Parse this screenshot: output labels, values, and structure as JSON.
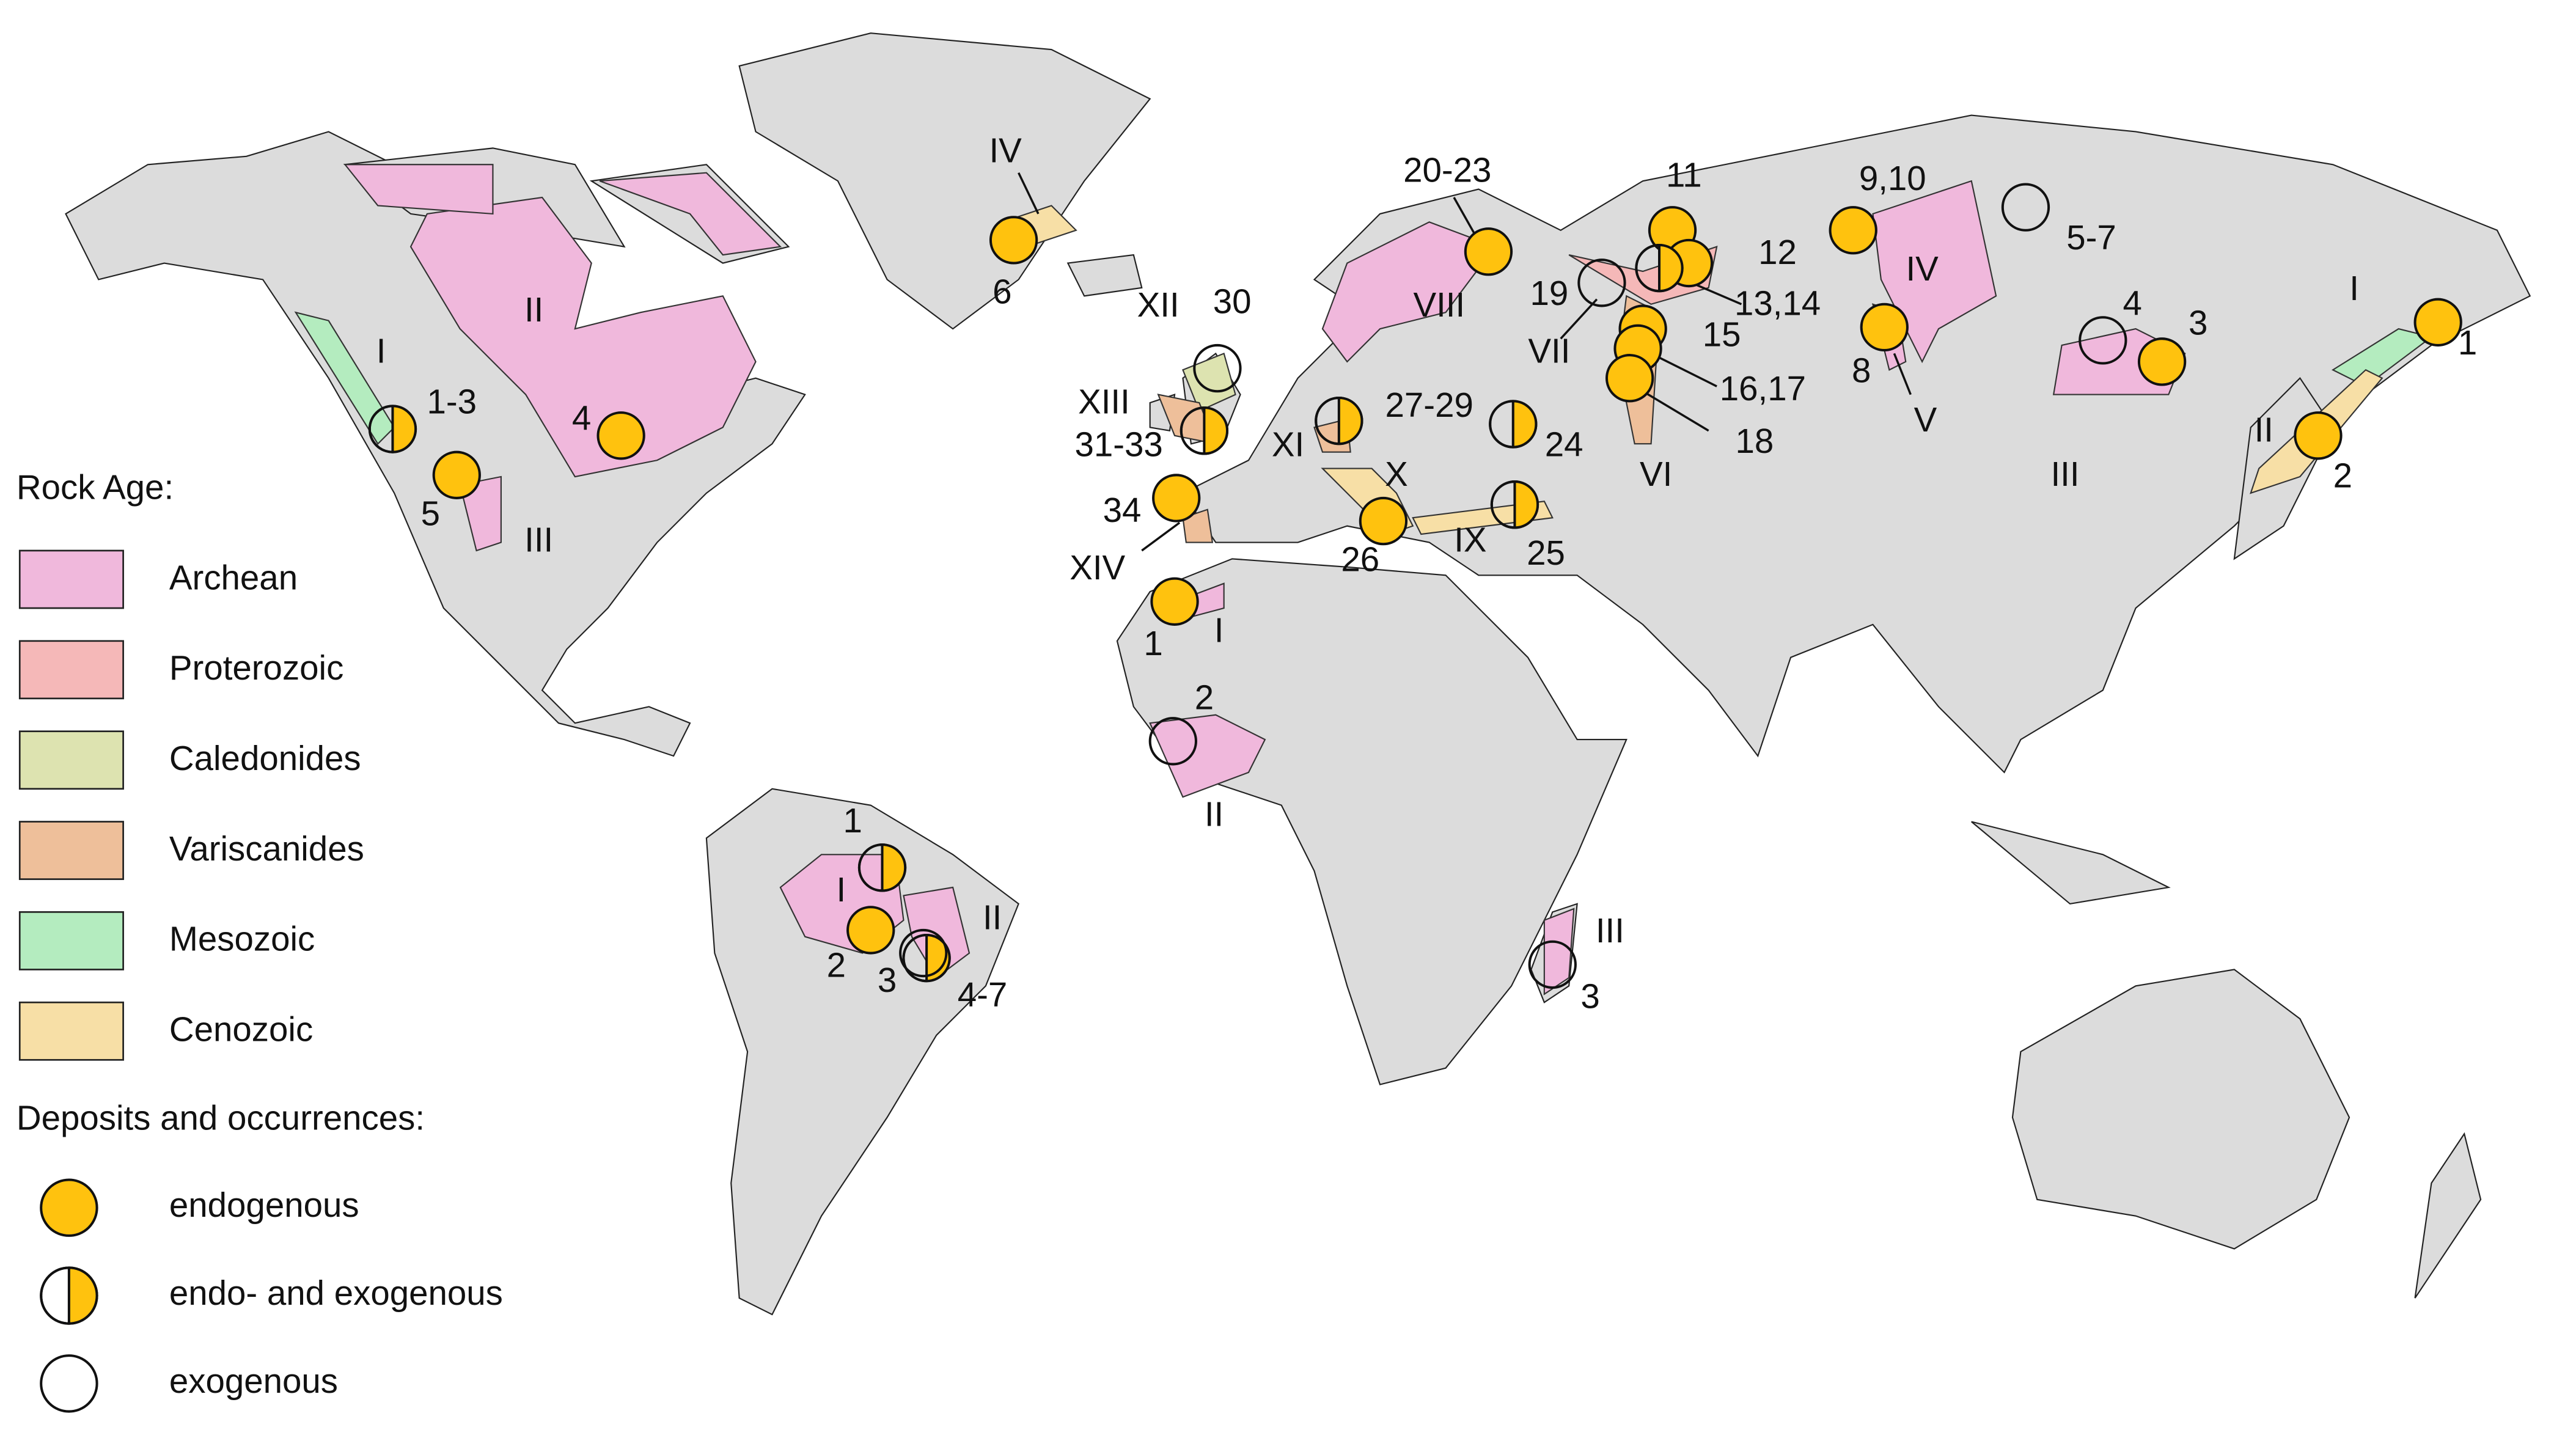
{
  "legend": {
    "rock_age_title": "Rock Age:",
    "rock_ages": [
      {
        "name": "Archean",
        "color": "#f0b8dc"
      },
      {
        "name": "Proterozoic",
        "color": "#f5b8b8"
      },
      {
        "name": "Caledonides",
        "color": "#dde3b0"
      },
      {
        "name": "Variscanides",
        "color": "#eebf9a"
      },
      {
        "name": "Mesozoic",
        "color": "#b4ecbf"
      },
      {
        "name": "Cenozoic",
        "color": "#f7dfa6"
      }
    ],
    "deposits_title": "Deposits and occurrences:",
    "deposit_types": [
      "endogenous",
      "endo- and exogenous",
      "exogenous"
    ]
  },
  "map": {
    "region_labels": [
      "II",
      "I",
      "III",
      "IV",
      "XII",
      "XIII",
      "XIV",
      "XI",
      "X",
      "IX",
      "VIII",
      "VII",
      "VI",
      "IV",
      "V",
      "III",
      "I",
      "II",
      "I",
      "II",
      "III",
      "I",
      "II"
    ],
    "deposit_labels": [
      "1-3",
      "4",
      "5",
      "6",
      "30",
      "31-33",
      "27-29",
      "24",
      "34",
      "26",
      "25",
      "20-23",
      "11",
      "12",
      "13,14",
      "19",
      "15",
      "16,17",
      "18",
      "9,10",
      "5-7",
      "8",
      "4",
      "3",
      "1",
      "2",
      "1",
      "2",
      "3",
      "1",
      "2",
      "3",
      "4-7"
    ]
  }
}
